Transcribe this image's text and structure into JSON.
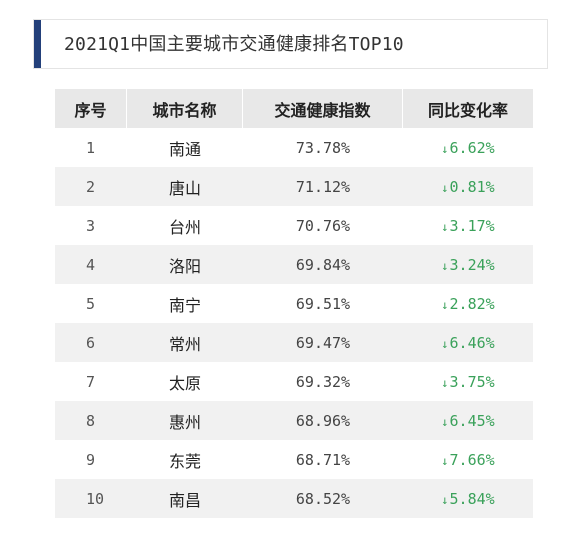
{
  "title": "2021Q1中国主要城市交通健康排名TOP10",
  "colors": {
    "accent_bar": "#23407a",
    "header_bg": "#e8e8e8",
    "stripe_bg": "#f1f1f1",
    "decline_green": "#3aa15a"
  },
  "table": {
    "headers": {
      "rank": "序号",
      "city": "城市名称",
      "index": "交通健康指数",
      "change": "同比变化率"
    },
    "change_arrow_icon": "down-arrow-icon",
    "change_arrow": "↓",
    "rows": [
      {
        "rank": "1",
        "city": "南通",
        "index": "73.78%",
        "change": "6.62%"
      },
      {
        "rank": "2",
        "city": "唐山",
        "index": "71.12%",
        "change": "0.81%"
      },
      {
        "rank": "3",
        "city": "台州",
        "index": "70.76%",
        "change": "3.17%"
      },
      {
        "rank": "4",
        "city": "洛阳",
        "index": "69.84%",
        "change": "3.24%"
      },
      {
        "rank": "5",
        "city": "南宁",
        "index": "69.51%",
        "change": "2.82%"
      },
      {
        "rank": "6",
        "city": "常州",
        "index": "69.47%",
        "change": "6.46%"
      },
      {
        "rank": "7",
        "city": "太原",
        "index": "69.32%",
        "change": "3.75%"
      },
      {
        "rank": "8",
        "city": "惠州",
        "index": "68.96%",
        "change": "6.45%"
      },
      {
        "rank": "9",
        "city": "东莞",
        "index": "68.71%",
        "change": "7.66%"
      },
      {
        "rank": "10",
        "city": "南昌",
        "index": "68.52%",
        "change": "5.84%"
      }
    ]
  }
}
